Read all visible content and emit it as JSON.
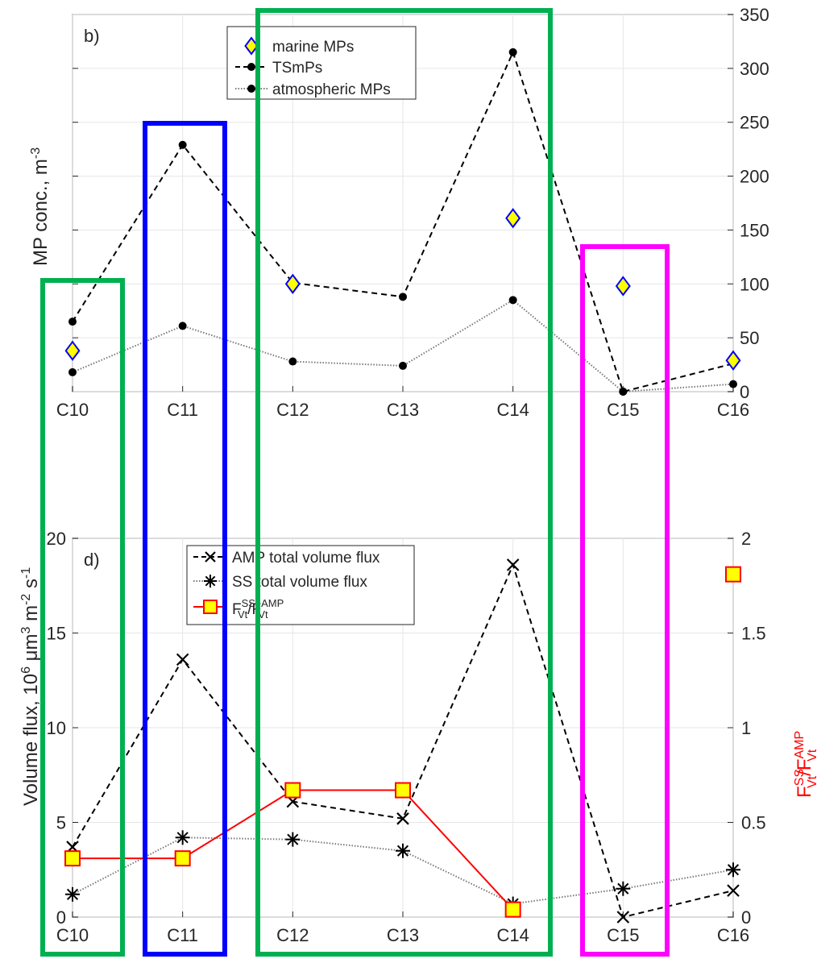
{
  "chart_data": [
    {
      "type": "line",
      "panel_label": "b)",
      "title": "",
      "xlabel": "",
      "ylabel": "MP conc., m",
      "ylabel_sup": "-3",
      "y_axis_side": "right",
      "categories": [
        "C10",
        "C11",
        "C12",
        "C13",
        "C14",
        "C15",
        "C16"
      ],
      "ylim": [
        0,
        350
      ],
      "yticks": [
        0,
        50,
        100,
        150,
        200,
        250,
        300,
        350
      ],
      "grid": true,
      "legend": "top-center",
      "series": [
        {
          "name": "marine MPs",
          "marker": "diamond",
          "line": "none",
          "color": "#0000ff",
          "fill": "#ffff00",
          "values": [
            38,
            null,
            100,
            null,
            161,
            98,
            29
          ]
        },
        {
          "name": "TSmPs",
          "marker": "dot",
          "line": "dashed",
          "color": "#000000",
          "values": [
            65,
            229,
            101,
            88,
            315,
            0,
            26
          ]
        },
        {
          "name": "atmospheric MPs",
          "marker": "dot",
          "line": "dotted",
          "color": "#595959",
          "values": [
            18,
            61,
            28,
            24,
            85,
            0,
            7
          ]
        }
      ]
    },
    {
      "type": "line",
      "panel_label": "d)",
      "title": "",
      "xlabel": "",
      "ylabel": "Volume flux, 10",
      "ylabel_parts": [
        "Volume flux, 10",
        "6",
        " μm",
        "3",
        " m",
        "-2",
        " s",
        "-1"
      ],
      "y2label_parts": [
        "F",
        "SS",
        "Vt",
        "/F",
        "AMP",
        "Vt"
      ],
      "categories": [
        "C10",
        "C11",
        "C12",
        "C13",
        "C14",
        "C15",
        "C16"
      ],
      "ylim": [
        0,
        20
      ],
      "yticks": [
        0,
        5,
        10,
        15,
        20
      ],
      "y2lim": [
        0,
        2
      ],
      "y2ticks": [
        "0",
        "0.5",
        "1",
        "1.5",
        "2"
      ],
      "grid": true,
      "legend": "top-center",
      "series": [
        {
          "name": "AMP total volume flux",
          "marker": "x",
          "line": "dashed",
          "color": "#000000",
          "axis": "left",
          "values": [
            3.7,
            13.6,
            6.1,
            5.2,
            18.6,
            0.0,
            1.4
          ]
        },
        {
          "name": "SS total volume flux",
          "marker": "asterisk",
          "line": "dotted",
          "color": "#000000",
          "axis": "left",
          "values": [
            1.2,
            4.2,
            4.1,
            3.5,
            0.7,
            1.5,
            2.5
          ]
        },
        {
          "name_parts": [
            "F",
            "SS",
            "Vt",
            "/F",
            "AMP",
            "Vt"
          ],
          "marker": "square",
          "line": "solid",
          "color": "#ff0000",
          "fill": "#ffff00",
          "axis": "right",
          "values": [
            0.31,
            0.31,
            0.67,
            0.67,
            0.04,
            null,
            1.81
          ],
          "connect": [
            [
              0,
              1
            ],
            [
              1,
              2
            ],
            [
              2,
              3
            ],
            [
              3,
              4
            ]
          ]
        }
      ]
    }
  ],
  "highlights": [
    {
      "color": "#00b050",
      "covers": "C10"
    },
    {
      "color": "#0000ff",
      "covers": "C11"
    },
    {
      "color": "#00b050",
      "covers": "C12-C14"
    },
    {
      "color": "#ff00ff",
      "covers": "C15"
    }
  ]
}
